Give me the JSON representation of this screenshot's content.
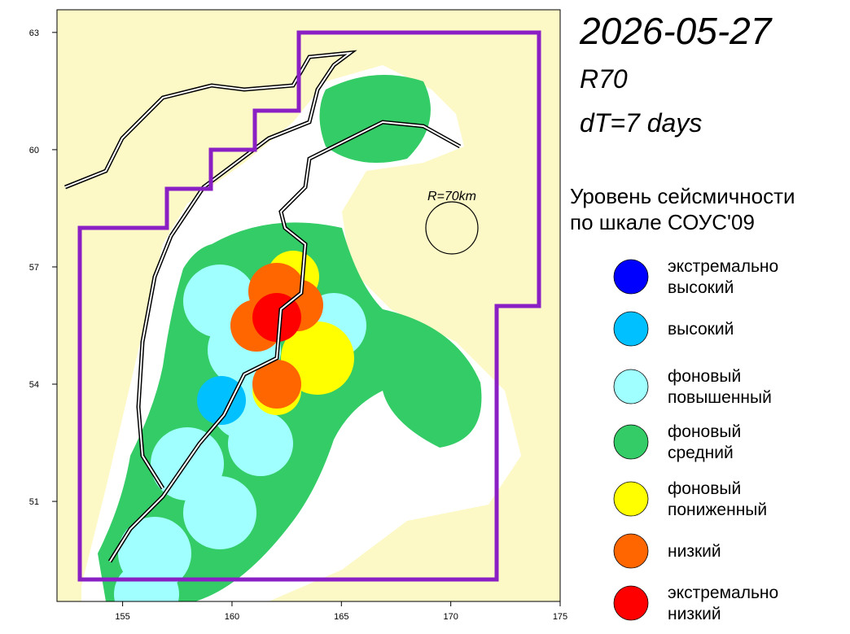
{
  "map": {
    "title": "2026-05-27",
    "subtitle": "R70",
    "period": "dT=7 days",
    "legend": {
      "heading": [
        "Уровень сейсмичности",
        "по шкале СОУС'09"
      ],
      "items": [
        {
          "label": [
            "экстремально",
            "высокий"
          ],
          "color": "#0000ff"
        },
        {
          "label": [
            "высокий"
          ],
          "color": "#00c0ff"
        },
        {
          "label": [
            "фоновый",
            "повышенный"
          ],
          "color": "#a0ffff"
        },
        {
          "label": [
            "фоновый",
            "средний"
          ],
          "color": "#33cc66"
        },
        {
          "label": [
            "фоновый",
            "пониженный"
          ],
          "color": "#ffff00"
        },
        {
          "label": [
            "низкий"
          ],
          "color": "#ff6600"
        },
        {
          "label": [
            "экстремально",
            "низкий"
          ],
          "color": "#ff0000"
        }
      ]
    },
    "radius_label": "R=70km",
    "xlim": [
      152,
      175
    ],
    "ylim": [
      48.44,
      63.58
    ],
    "xticks": [
      155,
      160,
      165,
      170,
      175
    ],
    "yticks": [
      51,
      54,
      57,
      60,
      63
    ]
  }
}
